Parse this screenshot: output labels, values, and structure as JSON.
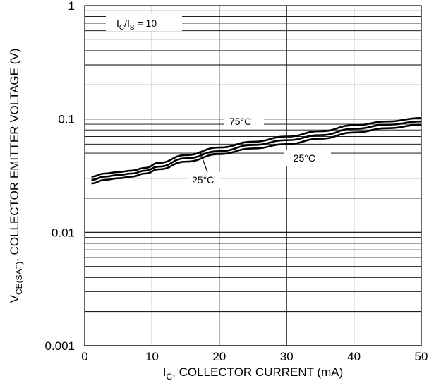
{
  "chart_data": {
    "type": "line",
    "title": "",
    "xlabel": {
      "prefix": "I",
      "sub": "C",
      "rest": ", COLLECTOR CURRENT (mA)"
    },
    "ylabel": {
      "prefix": "V",
      "sub": "CE(SAT)",
      "rest": ", COLLECTOR EMITTER VOLTAGE (V)"
    },
    "x_ticks": [
      "0",
      "10",
      "20",
      "30",
      "40",
      "50"
    ],
    "y_ticks": [
      "0.001",
      "0.01",
      "0.1",
      "1"
    ],
    "xlim": [
      0,
      50
    ],
    "ylim": [
      0.001,
      1
    ],
    "y_scale": "log",
    "grid": true,
    "legend": "none",
    "condition": {
      "prefix": "I",
      "sub1": "C",
      "mid": "/I",
      "sub2": "B",
      "rest": " = 10"
    },
    "series": [
      {
        "name": "75°C",
        "x": [
          1,
          3,
          5,
          7,
          9,
          11,
          15,
          20,
          25,
          30,
          35,
          40,
          45,
          50
        ],
        "y": [
          0.031,
          0.033,
          0.034,
          0.035,
          0.037,
          0.041,
          0.048,
          0.056,
          0.063,
          0.07,
          0.078,
          0.088,
          0.095,
          0.102
        ]
      },
      {
        "name": "25°C",
        "x": [
          1,
          3,
          5,
          7,
          9,
          11,
          15,
          20,
          25,
          30,
          35,
          40,
          45,
          50
        ],
        "y": [
          0.029,
          0.031,
          0.032,
          0.033,
          0.035,
          0.038,
          0.045,
          0.052,
          0.059,
          0.065,
          0.072,
          0.082,
          0.089,
          0.095
        ]
      },
      {
        "name": "-25°C",
        "x": [
          1,
          3,
          5,
          7,
          9,
          11,
          15,
          20,
          25,
          30,
          35,
          40,
          45,
          50
        ],
        "y": [
          0.027,
          0.029,
          0.03,
          0.031,
          0.033,
          0.036,
          0.042,
          0.049,
          0.055,
          0.06,
          0.067,
          0.076,
          0.083,
          0.089
        ]
      }
    ],
    "series_labels": [
      "75°C",
      "25°C",
      "-25°C"
    ],
    "colors": {
      "line": "#000000",
      "grid": "#000000",
      "background": "#ffffff"
    }
  }
}
